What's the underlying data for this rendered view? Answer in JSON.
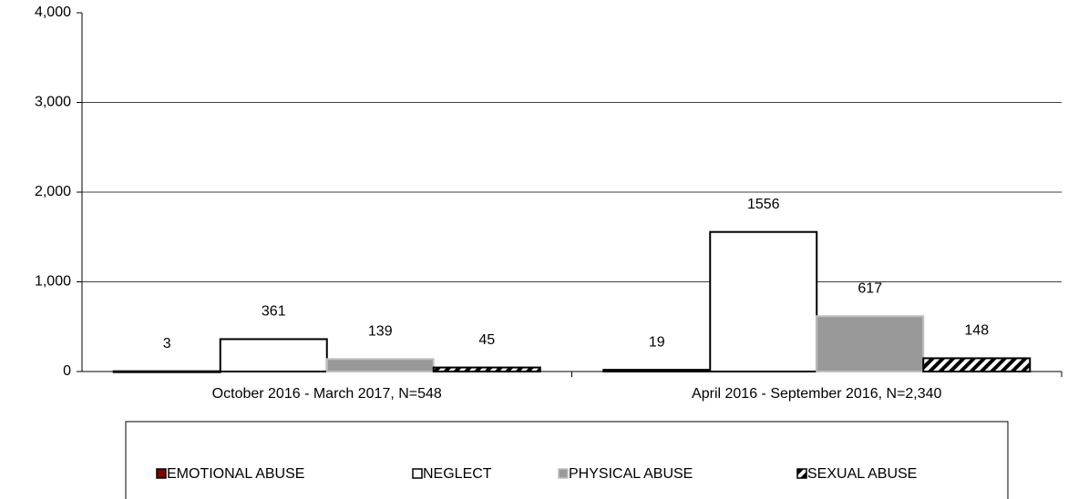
{
  "chart_data": {
    "type": "bar",
    "categories": [
      "October 2016 - March 2017, N=548",
      "April 2016 - September 2016, N=2,340"
    ],
    "series": [
      {
        "name": "EMOTIONAL ABUSE",
        "color": "#7f0000",
        "values": [
          3,
          19
        ]
      },
      {
        "name": "NEGLECT",
        "color": "#ffffff",
        "values": [
          361,
          1556
        ]
      },
      {
        "name": "PHYSICAL ABUSE",
        "color": "#999999",
        "values": [
          139,
          617
        ]
      },
      {
        "name": "SEXUAL ABUSE",
        "color": "#000000",
        "hatch": true,
        "values": [
          45,
          148
        ]
      }
    ],
    "ylim": [
      0,
      4000
    ],
    "yticks": [
      0,
      {
        "value": 1000,
        "label": "1,000"
      },
      {
        "value": 2000,
        "label": "2,000"
      },
      {
        "value": 3000,
        "label": "3,000"
      },
      {
        "value": 4000,
        "label": "4,000"
      }
    ],
    "grid": true,
    "legend": "bottom"
  }
}
